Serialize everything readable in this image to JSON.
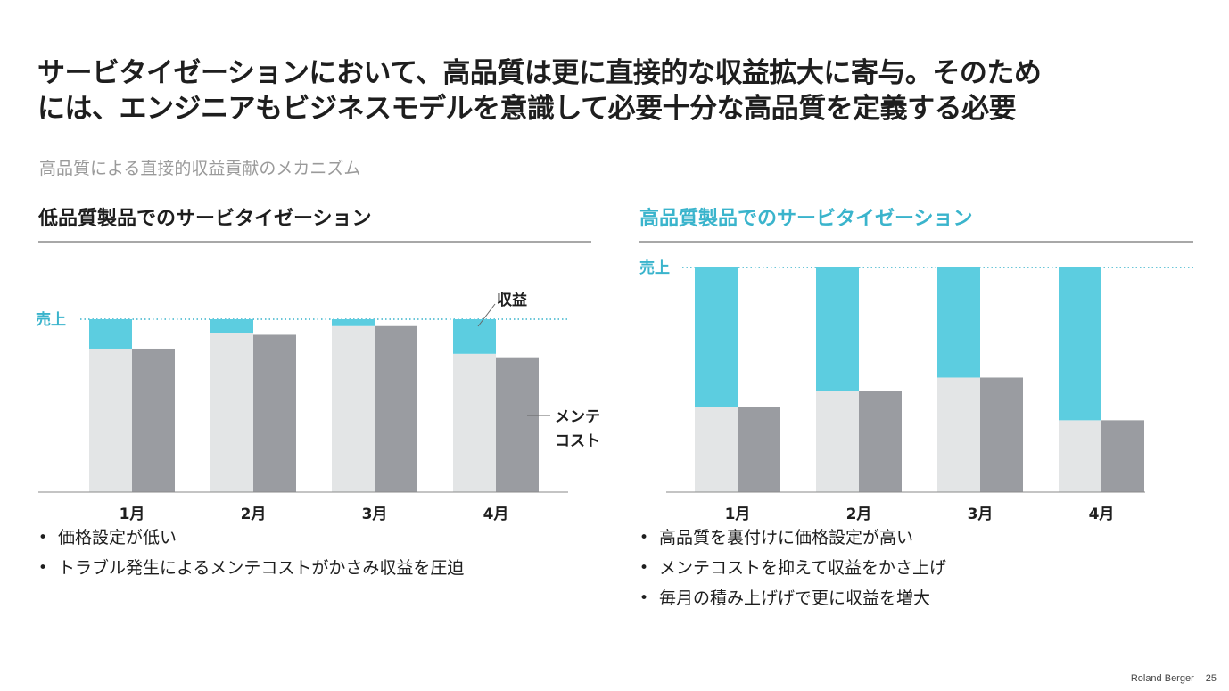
{
  "headline": {
    "line1": "サービタイゼーションにおいて、高品質は更に直接的な収益拡大に寄与。そのため",
    "line2": "には、エンジニアもビジネスモデルを意識して必要十分な高品質を定義する必要"
  },
  "subtitle": "高品質による直接的収益貢献のメカニズム",
  "colors": {
    "accent": "#5ccde0",
    "accent_text": "#3ab4cc",
    "light_bar": "#e3e5e6",
    "dark_bar": "#9a9ca1"
  },
  "left_panel": {
    "title": "低品質製品でのサービタイゼーション",
    "bullets": [
      "価格設定が低い",
      "トラブル発生によるメンテコストがかさみ収益を圧迫"
    ]
  },
  "right_panel": {
    "title": "高品質製品でのサービタイゼーション",
    "bullets": [
      "高品質を裏付けに価格設定が高い",
      "メンテコストを抑えて収益をかさ上げ",
      "毎月の積み上げげで更に収益を増大"
    ]
  },
  "chart_data": [
    {
      "type": "bar",
      "title": "低品質製品でのサービタイゼーション",
      "categories": [
        "1月",
        "2月",
        "3月",
        "4月"
      ],
      "ylim": [
        0,
        100
      ],
      "reference_line": {
        "label": "売上",
        "value": 100
      },
      "series": [
        {
          "name": "収益",
          "values": [
            83,
            92,
            96,
            80
          ],
          "stack": "left"
        },
        {
          "values": [
            17,
            8,
            4,
            20
          ],
          "stack": "left_top"
        },
        {
          "name": "メンテ\nコスト",
          "values": [
            83,
            91,
            96,
            78
          ]
        }
      ],
      "annotations": {
        "profit": "収益",
        "cost_line1": "メンテ",
        "cost_line2": "コスト"
      }
    },
    {
      "type": "bar",
      "title": "高品質製品でのサービタイゼーション",
      "categories": [
        "1月",
        "2月",
        "3月",
        "4月"
      ],
      "ylim": [
        0,
        100
      ],
      "reference_line": {
        "label": "売上",
        "value": 100
      },
      "series": [
        {
          "values": [
            38,
            45,
            51,
            32
          ],
          "stack": "left"
        },
        {
          "values": [
            62,
            55,
            49,
            68
          ],
          "stack": "left_top"
        },
        {
          "values": [
            38,
            45,
            51,
            32
          ]
        }
      ]
    }
  ],
  "footer": {
    "brand": "Roland Berger",
    "page": "25"
  }
}
